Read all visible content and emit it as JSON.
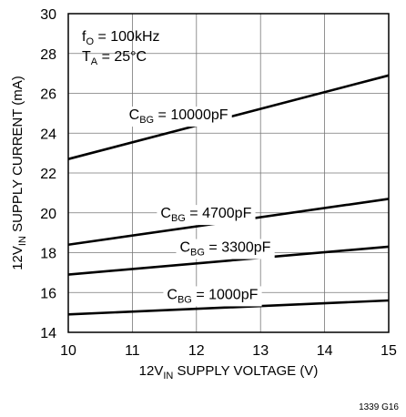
{
  "chart_data": {
    "type": "line",
    "xlabel": {
      "pre": "12V",
      "sub": "IN",
      "post": " SUPPLY VOLTAGE (V)"
    },
    "ylabel": {
      "pre": "12V",
      "sub": "IN",
      "post": " SUPPLY CURRENT (mA)"
    },
    "xlim": [
      10,
      15
    ],
    "ylim": [
      14,
      30
    ],
    "xticks": [
      10,
      11,
      12,
      13,
      14,
      15
    ],
    "yticks": [
      14,
      16,
      18,
      20,
      22,
      24,
      26,
      28,
      30
    ],
    "grid": true,
    "conditions": [
      {
        "pre": "f",
        "sub": "O",
        "post": " = 100kHz"
      },
      {
        "pre": "T",
        "sub": "A",
        "post": " = 25°C"
      }
    ],
    "series": [
      {
        "label": {
          "pre": "C",
          "sub": "BG",
          "post": " = 10000pF"
        },
        "x": [
          10,
          15
        ],
        "y": [
          22.7,
          26.9
        ]
      },
      {
        "label": {
          "pre": "C",
          "sub": "BG",
          "post": " = 4700pF"
        },
        "x": [
          10,
          15
        ],
        "y": [
          18.4,
          20.7
        ]
      },
      {
        "label": {
          "pre": "C",
          "sub": "BG",
          "post": " = 3300pF"
        },
        "x": [
          10,
          15
        ],
        "y": [
          16.9,
          18.3
        ]
      },
      {
        "label": {
          "pre": "C",
          "sub": "BG",
          "post": " = 1000pF"
        },
        "x": [
          10,
          15
        ],
        "y": [
          14.9,
          15.6
        ]
      }
    ],
    "figure_id": "1339 G16"
  }
}
